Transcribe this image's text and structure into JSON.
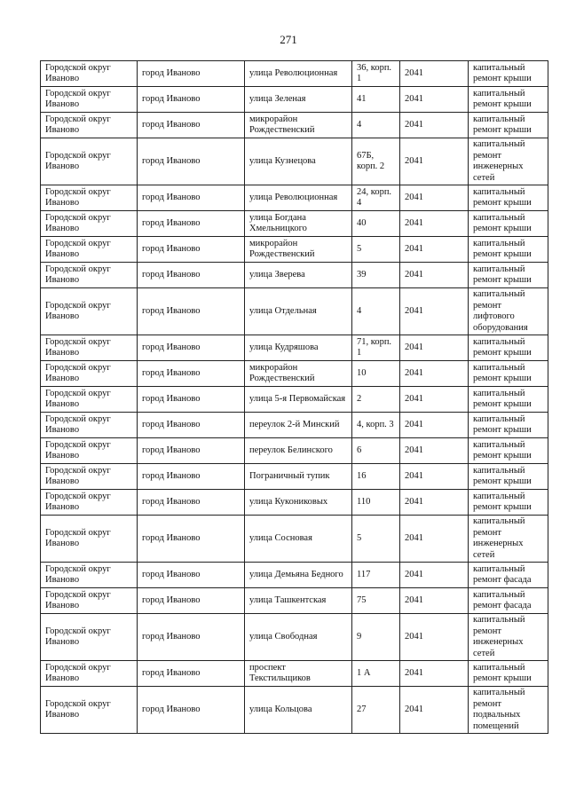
{
  "page_number": "271",
  "rows": [
    [
      "Городской округ Иваново",
      "город Иваново",
      "улица Революционная",
      "36, корп. 1",
      "2041",
      "капитальный ремонт крыши"
    ],
    [
      "Городской округ Иваново",
      "город Иваново",
      "улица Зеленая",
      "41",
      "2041",
      "капитальный ремонт крыши"
    ],
    [
      "Городской округ Иваново",
      "город Иваново",
      "микрорайон Рождественский",
      "4",
      "2041",
      "капитальный ремонт крыши"
    ],
    [
      "Городской округ Иваново",
      "город Иваново",
      "улица Кузнецова",
      "67Б, корп. 2",
      "2041",
      "капитальный ремонт инженерных сетей"
    ],
    [
      "Городской округ Иваново",
      "город Иваново",
      "улица Революционная",
      "24, корп. 4",
      "2041",
      "капитальный ремонт крыши"
    ],
    [
      "Городской округ Иваново",
      "город Иваново",
      "улица Богдана Хмельницкого",
      "40",
      "2041",
      "капитальный ремонт крыши"
    ],
    [
      "Городской округ Иваново",
      "город Иваново",
      "микрорайон Рождественский",
      "5",
      "2041",
      "капитальный ремонт крыши"
    ],
    [
      "Городской округ Иваново",
      "город Иваново",
      "улица Зверева",
      "39",
      "2041",
      "капитальный ремонт крыши"
    ],
    [
      "Городской округ Иваново",
      "город Иваново",
      "улица Отдельная",
      "4",
      "2041",
      "капитальный ремонт лифтового оборудования"
    ],
    [
      "Городской округ Иваново",
      "город Иваново",
      "улица Кудряшова",
      "71, корп. 1",
      "2041",
      "капитальный ремонт крыши"
    ],
    [
      "Городской округ Иваново",
      "город Иваново",
      "микрорайон Рождественский",
      "10",
      "2041",
      "капитальный ремонт крыши"
    ],
    [
      "Городской округ Иваново",
      "город Иваново",
      "улица 5-я Первомайская",
      "2",
      "2041",
      "капитальный ремонт крыши"
    ],
    [
      "Городской округ Иваново",
      "город Иваново",
      "переулок 2-й Минский",
      "4, корп. 3",
      "2041",
      "капитальный ремонт крыши"
    ],
    [
      "Городской округ Иваново",
      "город Иваново",
      "переулок Белинского",
      "6",
      "2041",
      "капитальный ремонт крыши"
    ],
    [
      "Городской округ Иваново",
      "город Иваново",
      "Пограничный тупик",
      "16",
      "2041",
      "капитальный ремонт крыши"
    ],
    [
      "Городской округ Иваново",
      "город Иваново",
      "улица Кукониковых",
      "110",
      "2041",
      "капитальный ремонт крыши"
    ],
    [
      "Городской округ Иваново",
      "город Иваново",
      "улица Сосновая",
      "5",
      "2041",
      "капитальный ремонт инженерных сетей"
    ],
    [
      "Городской округ Иваново",
      "город Иваново",
      "улица Демьяна Бедного",
      "117",
      "2041",
      "капитальный ремонт фасада"
    ],
    [
      "Городской округ Иваново",
      "город Иваново",
      "улица Ташкентская",
      "75",
      "2041",
      "капитальный ремонт фасада"
    ],
    [
      "Городской округ Иваново",
      "город Иваново",
      "улица Свободная",
      "9",
      "2041",
      "капитальный ремонт инженерных сетей"
    ],
    [
      "Городской округ Иваново",
      "город Иваново",
      "проспект Текстильщиков",
      "1 А",
      "2041",
      "капитальный ремонт крыши"
    ],
    [
      "Городской округ Иваново",
      "город Иваново",
      "улица Кольцова",
      "27",
      "2041",
      "капитальный ремонт подвальных помещений"
    ]
  ]
}
